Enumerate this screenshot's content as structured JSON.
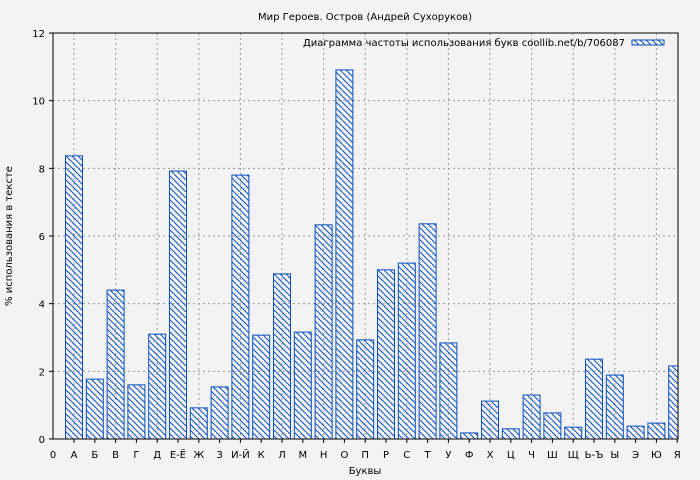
{
  "chart_data": {
    "type": "bar",
    "title": "Мир Героев. Остров (Андрей Сухоруков)",
    "xlabel": "Буквы",
    "ylabel": "% использования в тексте",
    "x_origin_label": "0",
    "categories": [
      "А",
      "Б",
      "В",
      "Г",
      "Д",
      "Е-Ё",
      "Ж",
      "З",
      "И-Й",
      "К",
      "Л",
      "М",
      "Н",
      "О",
      "П",
      "Р",
      "С",
      "Т",
      "У",
      "Ф",
      "Х",
      "Ц",
      "Ч",
      "Ш",
      "Щ",
      "Ь-Ъ",
      "Ы",
      "Э",
      "Ю",
      "Я"
    ],
    "series": [
      {
        "name": "Диаграмма частоты использования букв coollib.net/b/706087",
        "values": [
          8.37,
          1.77,
          4.4,
          1.6,
          3.1,
          7.92,
          0.92,
          1.54,
          7.8,
          3.07,
          4.88,
          3.16,
          6.33,
          10.91,
          2.93,
          5.0,
          5.2,
          6.36,
          2.84,
          0.18,
          1.12,
          0.3,
          1.3,
          0.77,
          0.35,
          2.36,
          1.89,
          0.38,
          0.47,
          2.16
        ]
      }
    ],
    "ylim": [
      0,
      12
    ],
    "yticks": [
      0,
      2,
      4,
      6,
      8,
      10,
      12
    ],
    "grid": true,
    "legend": "top-right",
    "colors": {
      "bar_edge": "#0a4fc0",
      "hatch": "#0a4fc0",
      "background": "#f3f3f3",
      "grid": "#999999"
    }
  }
}
